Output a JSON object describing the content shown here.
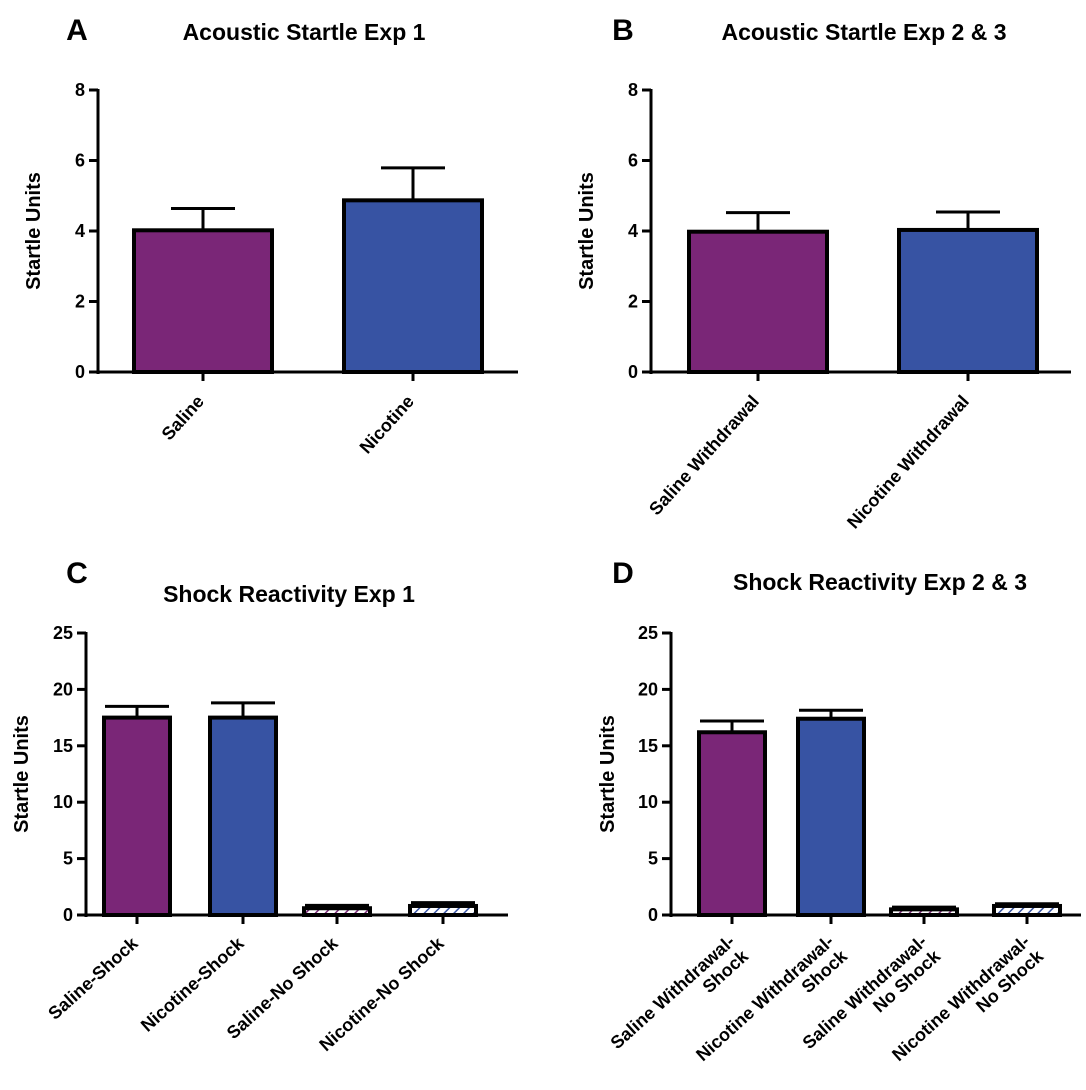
{
  "chart_data": [
    {
      "type": "bar",
      "panel": "A",
      "title": "Acoustic Startle Exp 1",
      "ylabel": "Startle Units",
      "ylim": [
        0,
        8
      ],
      "yticks": [
        0,
        2,
        4,
        6,
        8
      ],
      "categories": [
        [
          "Saline"
        ],
        [
          "Nicotine"
        ]
      ],
      "values": [
        4.02,
        4.87
      ],
      "errors": [
        0.62,
        0.92
      ],
      "patterns": [
        "solid",
        "solid"
      ],
      "colors": [
        "#7a2677",
        "#3753a3"
      ]
    },
    {
      "type": "bar",
      "panel": "B",
      "title": "Acoustic Startle Exp 2 & 3",
      "ylabel": "Startle Units",
      "ylim": [
        0,
        8
      ],
      "yticks": [
        0,
        2,
        4,
        6,
        8
      ],
      "categories": [
        [
          "Saline Withdrawal"
        ],
        [
          "Nicotine Withdrawal"
        ]
      ],
      "values": [
        3.98,
        4.03
      ],
      "errors": [
        0.54,
        0.51
      ],
      "patterns": [
        "solid",
        "solid"
      ],
      "colors": [
        "#7a2677",
        "#3753a3"
      ]
    },
    {
      "type": "bar",
      "panel": "C",
      "title": "Shock Reactivity Exp 1",
      "ylabel": "Startle Units",
      "ylim": [
        0,
        25
      ],
      "yticks": [
        0,
        5,
        10,
        15,
        20,
        25
      ],
      "categories": [
        [
          "Saline-Shock"
        ],
        [
          "Nicotine-Shock"
        ],
        [
          "Saline-No Shock"
        ],
        [
          "Nicotine-No Shock"
        ]
      ],
      "values": [
        17.5,
        17.5,
        0.6,
        0.8
      ],
      "errors": [
        1.0,
        1.3,
        0.25,
        0.3
      ],
      "patterns": [
        "solid",
        "solid",
        "hatched",
        "hatched"
      ],
      "colors": [
        "#7a2677",
        "#3753a3",
        "#7a2677",
        "#3753a3"
      ]
    },
    {
      "type": "bar",
      "panel": "D",
      "title": "Shock Reactivity Exp 2 & 3",
      "ylabel": "Startle Units",
      "ylim": [
        0,
        25
      ],
      "yticks": [
        0,
        5,
        10,
        15,
        20,
        25
      ],
      "categories": [
        [
          "Saline Withdrawal-",
          "Shock"
        ],
        [
          "Nicotine Withdrawal-",
          "Shock"
        ],
        [
          "Saline Withdrawal-",
          "No Shock"
        ],
        [
          "Nicotine Withdrawal-",
          "No Shock"
        ]
      ],
      "values": [
        16.2,
        17.4,
        0.5,
        0.8
      ],
      "errors": [
        1.0,
        0.75,
        0.2,
        0.2
      ],
      "patterns": [
        "solid",
        "solid",
        "hatched",
        "hatched"
      ],
      "colors": [
        "#7a2677",
        "#3753a3",
        "#7a2677",
        "#3753a3"
      ]
    }
  ]
}
